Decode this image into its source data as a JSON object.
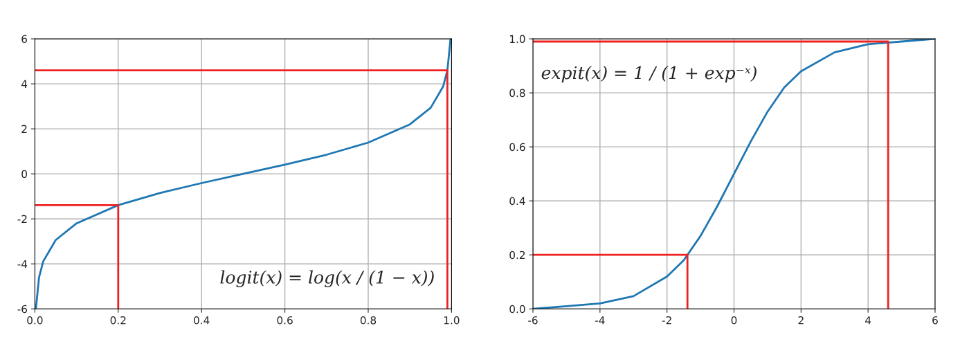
{
  "chart_data": [
    {
      "type": "line",
      "xlim": [
        0,
        1
      ],
      "ylim": [
        -6,
        6
      ],
      "xticks": [
        {
          "value": 0,
          "label": "0.0"
        },
        0.2,
        0.4,
        0.6,
        0.8,
        {
          "value": 1,
          "label": "1.0"
        }
      ],
      "yticks": [
        -6,
        -4,
        -2,
        0,
        2,
        4,
        6
      ],
      "grid": true,
      "annotations": [
        "logit(x) = log(x / (1 − x))"
      ],
      "series": [
        {
          "color": "#1f77b4",
          "x": [
            0.0025,
            0.01,
            0.02,
            0.05,
            0.1,
            0.2,
            0.3,
            0.4,
            0.5,
            0.6,
            0.7,
            0.8,
            0.9,
            0.95,
            0.98,
            0.99,
            0.9975
          ],
          "values": [
            -5.99,
            -4.6,
            -3.89,
            -2.94,
            -2.2,
            -1.39,
            -0.85,
            -0.41,
            0,
            0.41,
            0.85,
            1.39,
            2.2,
            2.94,
            3.89,
            4.6,
            5.99
          ]
        },
        {
          "color": "#ee2222",
          "x": [
            0,
            0.2,
            0.2
          ],
          "values": [
            -1.39,
            -1.39,
            -6
          ]
        },
        {
          "color": "#ee2222",
          "x": [
            0,
            0.99,
            0.99
          ],
          "values": [
            4.6,
            4.6,
            -6
          ]
        }
      ]
    },
    {
      "type": "line",
      "xlim": [
        -6,
        6
      ],
      "ylim": [
        0,
        1
      ],
      "xticks": [
        -6,
        -4,
        -2,
        0,
        2,
        4,
        6
      ],
      "yticks": [
        {
          "value": 0,
          "label": "0.0"
        },
        0.2,
        0.4,
        0.6,
        0.8,
        {
          "value": 1,
          "label": "1.0"
        }
      ],
      "grid": true,
      "annotations": [
        "expit(x) = 1 / (1 + exp⁻ˣ)"
      ],
      "series": [
        {
          "color": "#1f77b4",
          "x": [
            -6,
            -5,
            -4,
            -3,
            -2,
            -1.5,
            -1,
            -0.5,
            0,
            0.5,
            1,
            1.5,
            2,
            3,
            4,
            5,
            6
          ],
          "values": [
            0.0,
            0.01,
            0.02,
            0.047,
            0.12,
            0.18,
            0.27,
            0.38,
            0.5,
            0.62,
            0.73,
            0.82,
            0.88,
            0.95,
            0.98,
            0.99,
            1.0
          ]
        },
        {
          "color": "#ee2222",
          "x": [
            -6,
            -1.39,
            -1.39
          ],
          "values": [
            0.2,
            0.2,
            0
          ]
        },
        {
          "color": "#ee2222",
          "x": [
            -6,
            4.6,
            4.6
          ],
          "values": [
            0.99,
            0.99,
            0
          ]
        }
      ]
    }
  ]
}
